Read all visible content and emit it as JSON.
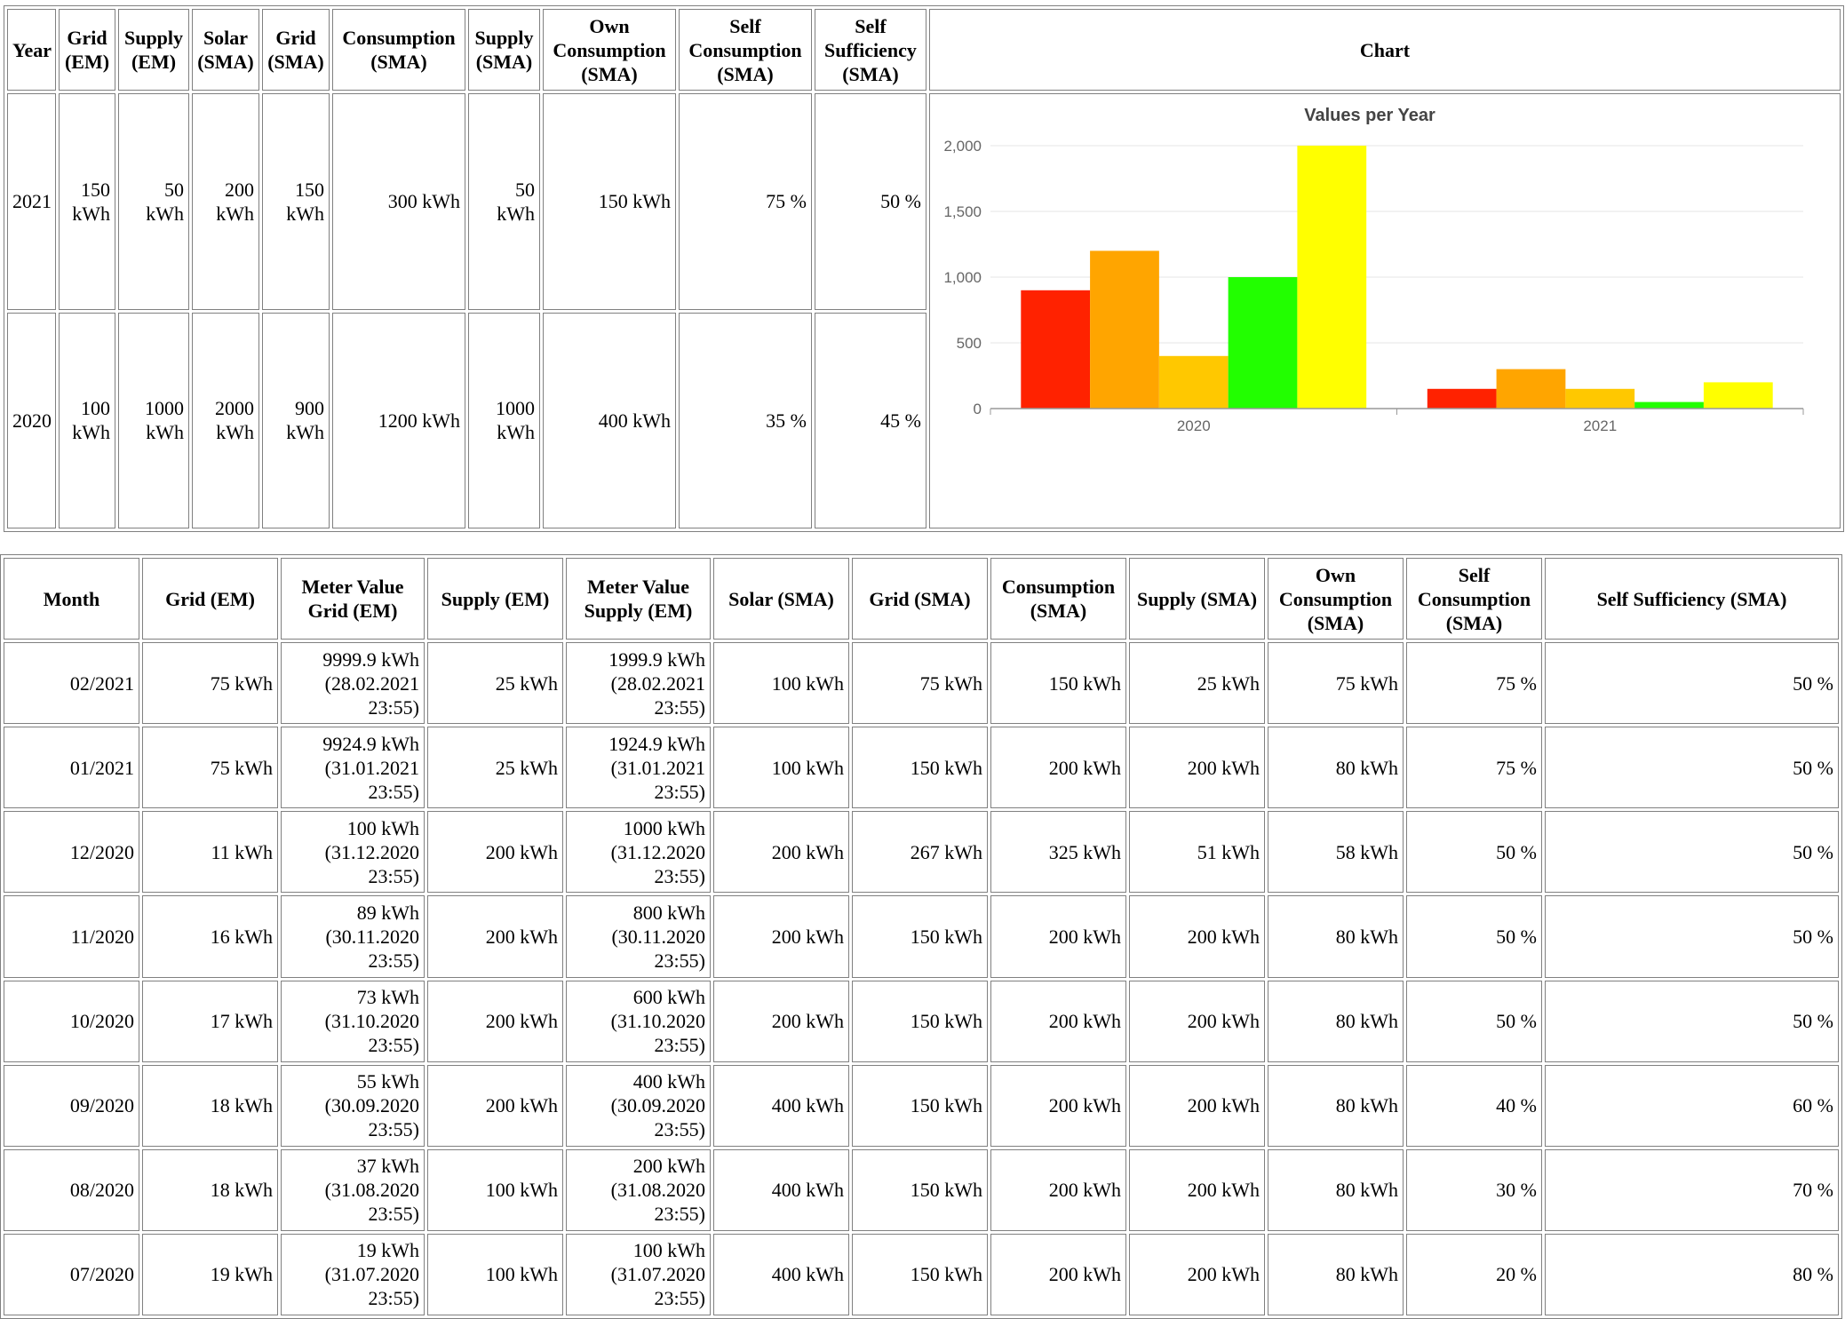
{
  "yearly": {
    "headers": [
      "Year",
      "Grid (EM)",
      "Supply (EM)",
      "Solar (SMA)",
      "Grid (SMA)",
      "Consumption (SMA)",
      "Supply (SMA)",
      "Own Consumption (SMA)",
      "Self Consumption (SMA)",
      "Self Sufficiency (SMA)",
      "Chart"
    ],
    "rows": [
      [
        "2021",
        "150 kWh",
        "50 kWh",
        "200 kWh",
        "150 kWh",
        "300 kWh",
        "50 kWh",
        "150 kWh",
        "75 %",
        "50 %"
      ],
      [
        "2020",
        "100 kWh",
        "1000 kWh",
        "2000 kWh",
        "900 kWh",
        "1200 kWh",
        "1000 kWh",
        "400 kWh",
        "35 %",
        "45 %"
      ]
    ]
  },
  "chart_data": {
    "type": "bar",
    "title": "Values per Year",
    "categories": [
      "2020",
      "2021"
    ],
    "series": [
      {
        "color": "#ff2200",
        "values": [
          900,
          150
        ]
      },
      {
        "color": "#ffa500",
        "values": [
          1200,
          300
        ]
      },
      {
        "color": "#ffc800",
        "values": [
          400,
          150
        ]
      },
      {
        "color": "#22ff00",
        "values": [
          1000,
          50
        ]
      },
      {
        "color": "#ffff00",
        "values": [
          2000,
          200
        ]
      }
    ],
    "ylim": [
      0,
      2000
    ],
    "yticks": [
      0,
      500,
      1000,
      1500,
      2000
    ],
    "ytick_labels": [
      "0",
      "500",
      "1,000",
      "1,500",
      "2,000"
    ],
    "grid": true,
    "legend": "none"
  },
  "monthly": {
    "headers": [
      "Month",
      "Grid (EM)",
      "Meter Value Grid (EM)",
      "Supply (EM)",
      "Meter Value Supply (EM)",
      "Solar (SMA)",
      "Grid (SMA)",
      "Consumption (SMA)",
      "Supply (SMA)",
      "Own Consumption (SMA)",
      "Self Consumption (SMA)",
      "Self Sufficiency (SMA)"
    ],
    "rows": [
      [
        "02/2021",
        "75 kWh",
        "9999.9 kWh (28.02.2021 23:55)",
        "25 kWh",
        "1999.9 kWh (28.02.2021 23:55)",
        "100 kWh",
        "75 kWh",
        "150 kWh",
        "25 kWh",
        "75 kWh",
        "75 %",
        "50 %"
      ],
      [
        "01/2021",
        "75 kWh",
        "9924.9 kWh (31.01.2021 23:55)",
        "25 kWh",
        "1924.9 kWh (31.01.2021 23:55)",
        "100 kWh",
        "150 kWh",
        "200 kWh",
        "200 kWh",
        "80 kWh",
        "75 %",
        "50 %"
      ],
      [
        "12/2020",
        "11 kWh",
        "100 kWh (31.12.2020 23:55)",
        "200 kWh",
        "1000 kWh (31.12.2020 23:55)",
        "200 kWh",
        "267 kWh",
        "325 kWh",
        "51 kWh",
        "58 kWh",
        "50 %",
        "50 %"
      ],
      [
        "11/2020",
        "16 kWh",
        "89 kWh (30.11.2020 23:55)",
        "200 kWh",
        "800 kWh (30.11.2020 23:55)",
        "200 kWh",
        "150 kWh",
        "200 kWh",
        "200 kWh",
        "80 kWh",
        "50 %",
        "50 %"
      ],
      [
        "10/2020",
        "17 kWh",
        "73 kWh (31.10.2020 23:55)",
        "200 kWh",
        "600 kWh (31.10.2020 23:55)",
        "200 kWh",
        "150 kWh",
        "200 kWh",
        "200 kWh",
        "80 kWh",
        "50 %",
        "50 %"
      ],
      [
        "09/2020",
        "18 kWh",
        "55 kWh (30.09.2020 23:55)",
        "200 kWh",
        "400 kWh (30.09.2020 23:55)",
        "400 kWh",
        "150 kWh",
        "200 kWh",
        "200 kWh",
        "80 kWh",
        "40 %",
        "60 %"
      ],
      [
        "08/2020",
        "18 kWh",
        "37 kWh (31.08.2020 23:55)",
        "100 kWh",
        "200 kWh (31.08.2020 23:55)",
        "400 kWh",
        "150 kWh",
        "200 kWh",
        "200 kWh",
        "80 kWh",
        "30 %",
        "70 %"
      ],
      [
        "07/2020",
        "19 kWh",
        "19 kWh (31.07.2020 23:55)",
        "100 kWh",
        "100 kWh (31.07.2020 23:55)",
        "400 kWh",
        "150 kWh",
        "200 kWh",
        "200 kWh",
        "80 kWh",
        "20 %",
        "80 %"
      ]
    ]
  }
}
